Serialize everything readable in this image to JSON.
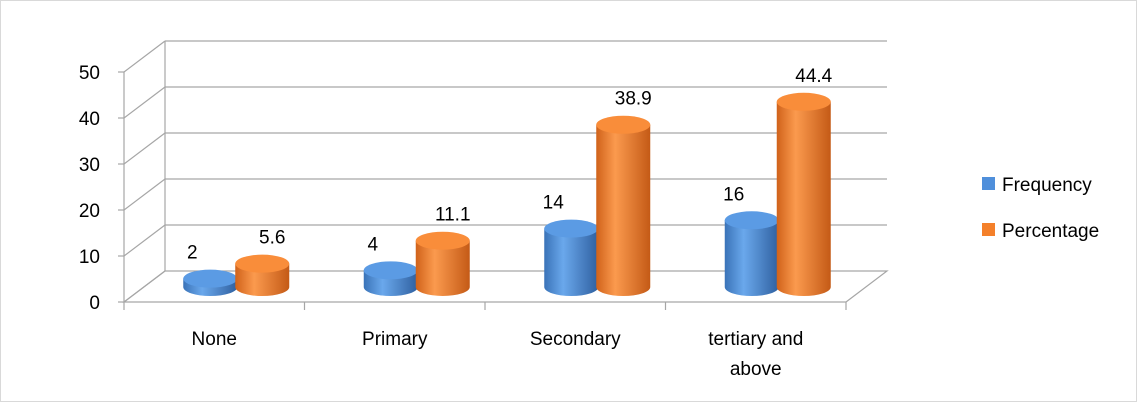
{
  "chart_data": {
    "type": "bar",
    "categories": [
      "None",
      "Primary",
      "Secondary",
      "tertiary and above"
    ],
    "category_label_lines": [
      [
        "None"
      ],
      [
        "Primary"
      ],
      [
        "Secondary"
      ],
      [
        "tertiary and",
        "above"
      ]
    ],
    "series": [
      {
        "name": "Frequency",
        "values": [
          2,
          4,
          14,
          16
        ],
        "labels": [
          "2",
          "4",
          "14",
          "16"
        ],
        "color": "#4f8fdb"
      },
      {
        "name": "Percentage",
        "values": [
          5.6,
          11.1,
          38.9,
          44.4
        ],
        "labels": [
          "5.6",
          "11.1",
          "38.9",
          "44.4"
        ],
        "color": "#f4802a"
      }
    ],
    "ylim": [
      0,
      50
    ],
    "yticks": [
      0,
      10,
      20,
      30,
      40,
      50
    ],
    "ytick_labels": [
      "0",
      "10",
      "20",
      "30",
      "40",
      "50"
    ],
    "grid": true,
    "three_d": true,
    "bar_shape": "cylinder",
    "legend_position": "right"
  }
}
